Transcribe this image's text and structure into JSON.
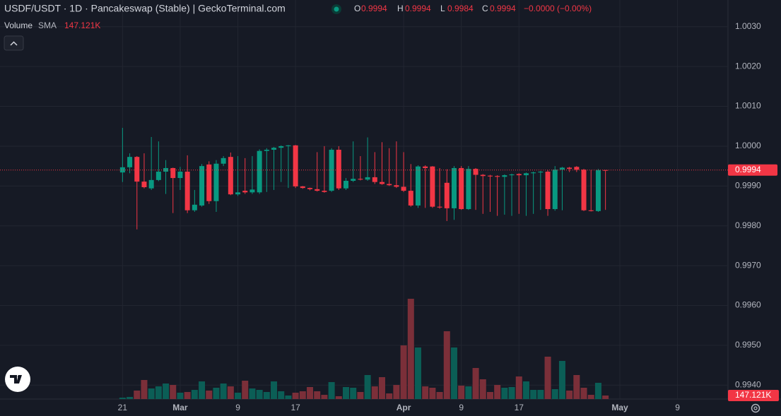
{
  "chart_data": {
    "type": "candlestick",
    "title": "USDF/USDT · 1D · Pancakeswap (Stable) | GeckoTerminal.com",
    "ohlc_labels": [
      "O",
      "H",
      "L",
      "C"
    ],
    "change_label": "−0.0000 (−0.00%)",
    "legend": {
      "volume_label": "Volume",
      "sma_label": "SMA",
      "volume_value": "147.121K"
    },
    "x": [
      "02-21",
      "02-22",
      "02-23",
      "02-24",
      "02-25",
      "02-26",
      "02-27",
      "02-28",
      "03-01",
      "03-02",
      "03-03",
      "03-04",
      "03-05",
      "03-06",
      "03-07",
      "03-08",
      "03-09",
      "03-10",
      "03-11",
      "03-12",
      "03-13",
      "03-14",
      "03-15",
      "03-16",
      "03-17",
      "03-18",
      "03-19",
      "03-20",
      "03-21",
      "03-22",
      "03-23",
      "03-24",
      "03-25",
      "03-26",
      "03-27",
      "03-28",
      "03-29",
      "03-30",
      "03-31",
      "04-01",
      "04-02",
      "04-03",
      "04-04",
      "04-05",
      "04-06",
      "04-07",
      "04-08",
      "04-09",
      "04-10",
      "04-11",
      "04-12",
      "04-13",
      "04-14",
      "04-15",
      "04-16",
      "04-17",
      "04-18",
      "04-19",
      "04-20",
      "04-21",
      "04-22",
      "04-23",
      "04-24",
      "04-25",
      "04-26",
      "04-27",
      "04-28",
      "04-29"
    ],
    "open": [
      0.99934,
      0.99947,
      0.99973,
      0.99911,
      0.99894,
      0.99915,
      0.99936,
      0.99945,
      0.9992,
      0.99936,
      0.99839,
      0.99851,
      0.99954,
      0.99862,
      0.99956,
      0.99973,
      0.99879,
      0.99888,
      0.99884,
      0.99884,
      0.99988,
      0.99991,
      0.99996,
      1.0,
      1.00002,
      0.99899,
      0.99895,
      0.99892,
      0.99888,
      0.99888,
      0.99991,
      0.99894,
      0.99913,
      0.99918,
      0.99916,
      0.99922,
      0.9991,
      0.99905,
      0.99902,
      0.99898,
      0.99888,
      0.99851,
      0.99949,
      0.99949,
      0.99848,
      0.99908,
      0.99844,
      0.99945,
      0.99842,
      0.99943,
      0.99928,
      0.99926,
      0.99925,
      0.99923,
      0.99927,
      0.9993,
      0.99927,
      0.99932,
      0.99934,
      0.99936,
      0.99842,
      0.99941,
      0.99946,
      0.99948,
      0.99941,
      0.99839,
      0.99837,
      0.9994
    ],
    "high": [
      1.00046,
      0.99982,
      0.99975,
      0.99982,
      1.00023,
      1.00012,
      0.99965,
      0.99946,
      0.99948,
      0.99977,
      0.9989,
      0.99955,
      0.99962,
      0.99965,
      0.99975,
      0.99984,
      0.99975,
      0.9997,
      0.99975,
      0.99992,
      0.99995,
      0.99998,
      1.00002,
      1.00003,
      1.00003,
      0.999,
      0.99896,
      0.99985,
      1.0,
      0.99995,
      1.0,
      0.9992,
      1.00012,
      0.99975,
      1.00022,
      0.99985,
      1.0001,
      0.99995,
      1.00012,
      0.99985,
      0.99955,
      0.99952,
      0.99952,
      0.9995,
      0.99945,
      0.99942,
      0.9995,
      0.9995,
      0.9995,
      0.99945,
      0.9993,
      0.99928,
      0.99927,
      0.99929,
      0.99931,
      0.99932,
      0.99934,
      0.99936,
      0.99938,
      0.9994,
      0.9995,
      0.99948,
      0.99948,
      0.9995,
      0.99943,
      0.9994,
      0.99943,
      0.9994
    ],
    "low": [
      0.9991,
      0.99932,
      0.99791,
      0.99894,
      0.9989,
      0.99912,
      0.9988,
      0.99832,
      0.9989,
      0.99832,
      0.99835,
      0.99848,
      0.99855,
      0.99835,
      0.9995,
      0.99877,
      0.99875,
      0.9988,
      0.9988,
      0.9988,
      0.99885,
      0.9989,
      0.9991,
      0.99895,
      0.99895,
      0.99893,
      0.99889,
      0.99886,
      0.99883,
      0.99885,
      0.9989,
      0.9989,
      0.9991,
      0.99914,
      0.99913,
      0.99905,
      0.99903,
      0.999,
      0.99895,
      0.99885,
      0.99848,
      0.99845,
      0.99845,
      0.99845,
      0.99843,
      0.99812,
      0.99815,
      0.9984,
      0.9984,
      0.9984,
      0.9983,
      0.99835,
      0.99825,
      0.99828,
      0.99825,
      0.9983,
      0.99825,
      0.9983,
      0.9984,
      0.99825,
      0.99838,
      0.99839,
      0.99935,
      0.99935,
      0.99837,
      0.99836,
      0.99835,
      0.9984
    ],
    "close": [
      0.99947,
      0.99973,
      0.99911,
      0.99897,
      0.99915,
      0.99936,
      0.99945,
      0.9992,
      0.99936,
      0.99839,
      0.99853,
      0.9995,
      0.99862,
      0.99956,
      0.9997,
      0.99879,
      0.99884,
      0.99884,
      0.99891,
      0.99988,
      0.99991,
      0.99996,
      1.0,
      1.00002,
      0.99899,
      0.99895,
      0.99892,
      0.99888,
      0.99885,
      0.99991,
      0.99894,
      0.99913,
      0.99918,
      0.99916,
      0.99922,
      0.9991,
      0.99905,
      0.99902,
      0.99898,
      0.99888,
      0.99851,
      0.99949,
      0.99945,
      0.99848,
      0.99846,
      0.99844,
      0.99945,
      0.99842,
      0.99943,
      0.99928,
      0.99925,
      0.99924,
      0.99923,
      0.99927,
      0.99929,
      0.99927,
      0.99932,
      0.99934,
      0.99936,
      0.99842,
      0.99941,
      0.99946,
      0.99943,
      0.99941,
      0.99839,
      0.99837,
      0.9994,
      0.9994
    ],
    "volume": [
      59000,
      88000,
      353000,
      794000,
      441000,
      529000,
      647000,
      588000,
      265000,
      294000,
      382000,
      735000,
      353000,
      471000,
      647000,
      529000,
      265000,
      765000,
      441000,
      382000,
      294000,
      735000,
      324000,
      147000,
      265000,
      324000,
      500000,
      324000,
      176000,
      706000,
      118000,
      500000,
      471000,
      294000,
      1000000,
      529000,
      912000,
      235000,
      588000,
      2235000,
      4176000,
      2147000,
      529000,
      471000,
      294000,
      2824000,
      2147000,
      559000,
      529000,
      1294000,
      824000,
      294000,
      588000,
      471000,
      500000,
      941000,
      735000,
      382000,
      382000,
      1765000,
      412000,
      1588000,
      353000,
      1000000,
      471000,
      176000,
      676000,
      147121
    ],
    "volume_lim": [
      0,
      5000000
    ],
    "up_color": "#089981",
    "down_color": "#f23645",
    "volume_up_color": "#0b5e56",
    "volume_down_color": "#7b2f39",
    "xlim": [
      "02-04",
      "05-16"
    ],
    "xticks": [
      {
        "value": "02-21",
        "label": "21"
      },
      {
        "value": "03-01",
        "label": "Mar"
      },
      {
        "value": "03-09",
        "label": "9"
      },
      {
        "value": "03-17",
        "label": "17"
      },
      {
        "value": "04-01",
        "label": "Apr"
      },
      {
        "value": "04-09",
        "label": "9"
      },
      {
        "value": "04-17",
        "label": "17"
      },
      {
        "value": "05-01",
        "label": "May"
      },
      {
        "value": "05-09",
        "label": "9"
      }
    ],
    "ylim": [
      0.99365,
      1.00367
    ],
    "yticks": [
      {
        "value": 1.003,
        "label": "1.0030"
      },
      {
        "value": 1.002,
        "label": "1.0020"
      },
      {
        "value": 1.001,
        "label": "1.0010"
      },
      {
        "value": 1.0,
        "label": "1.0000"
      },
      {
        "value": 0.999,
        "label": "0.9990"
      },
      {
        "value": 0.998,
        "label": "0.9980"
      },
      {
        "value": 0.997,
        "label": "0.9970"
      },
      {
        "value": 0.996,
        "label": "0.9960"
      },
      {
        "value": 0.995,
        "label": "0.9950"
      },
      {
        "value": 0.994,
        "label": "0.9940"
      }
    ],
    "grid": true
  }
}
